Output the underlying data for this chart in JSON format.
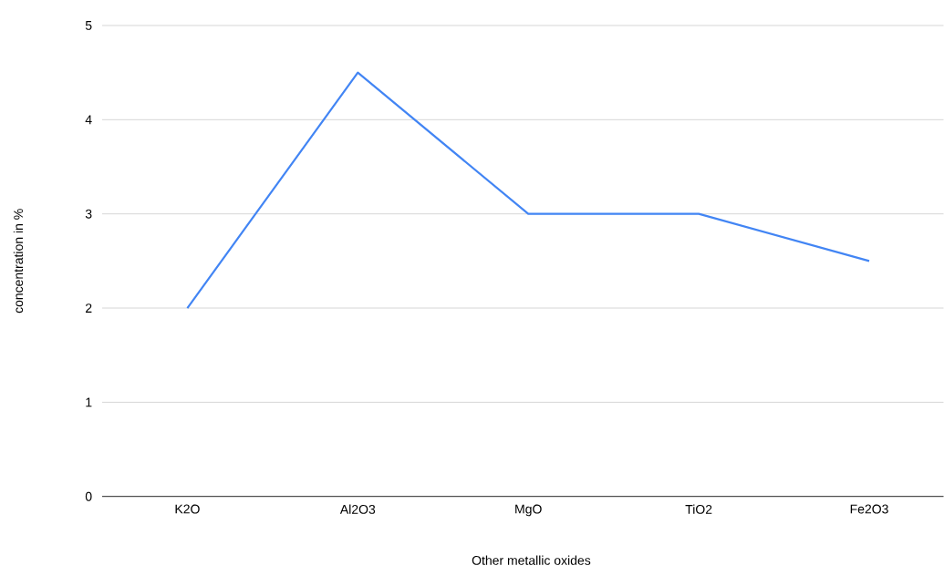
{
  "chart_data": {
    "type": "line",
    "xlabel": "Other metallic oxides",
    "ylabel": "concentration in %",
    "categories": [
      "K2O",
      "Al2O3",
      "MgO",
      "TiO2",
      "Fe2O3"
    ],
    "series": [
      {
        "color": "#4285f4",
        "values": [
          2,
          4.5,
          3,
          3,
          2.5
        ]
      }
    ],
    "ylim": [
      0,
      5
    ],
    "yticks": [
      0,
      1,
      2,
      3,
      4,
      5
    ],
    "grid": "y",
    "marker": "none",
    "line_style": "solid"
  }
}
